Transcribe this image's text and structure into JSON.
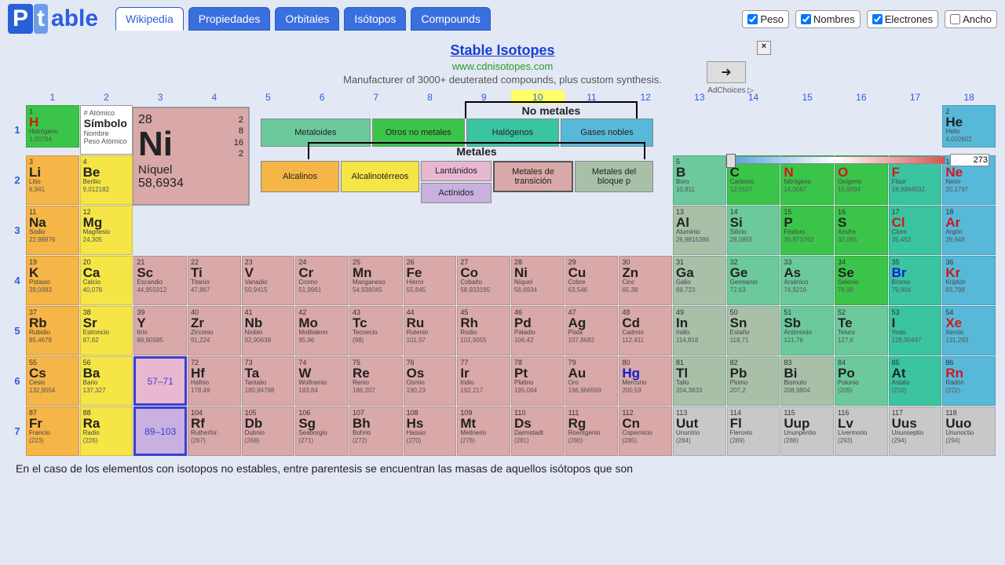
{
  "logo": {
    "p": "P",
    "t": "t",
    "rest": "able"
  },
  "tabs": [
    {
      "label": "Wikipedia",
      "active": true
    },
    {
      "label": "Propiedades",
      "active": false
    },
    {
      "label": "Orbitales",
      "active": false
    },
    {
      "label": "Isótopos",
      "active": false
    },
    {
      "label": "Compounds",
      "active": false
    }
  ],
  "checks": [
    {
      "label": "Peso",
      "checked": true
    },
    {
      "label": "Nombres",
      "checked": true
    },
    {
      "label": "Electrones",
      "checked": true
    },
    {
      "label": "Ancho",
      "checked": false
    }
  ],
  "ad": {
    "title": "Stable Isotopes",
    "url": "www.cdnisotopes.com",
    "desc": "Manufacturer of 3000+ deuterated compounds, plus custom synthesis.",
    "close": "×",
    "arrow": "➜",
    "adchoices": "AdChoices ▷"
  },
  "groups": [
    "1",
    "2",
    "3",
    "4",
    "5",
    "6",
    "7",
    "8",
    "9",
    "10",
    "11",
    "12",
    "13",
    "14",
    "15",
    "16",
    "17",
    "18"
  ],
  "group_highlight": 10,
  "periods": [
    "1",
    "2",
    "3",
    "4",
    "5",
    "6",
    "7"
  ],
  "key": {
    "l1": "# Atómico",
    "l2": "Símbolo",
    "l3": "Nombre",
    "l4": "Peso Atómico"
  },
  "detail": {
    "num": "28",
    "sym": "Ni",
    "name": "Níquel",
    "mass": "58,6934",
    "econf": [
      "2",
      "8",
      "16",
      "2"
    ]
  },
  "legend": {
    "nonmetals_title": "No metales",
    "metals_title": "Metales",
    "metalloids": "Metaloides",
    "other_nm": "Otros no metales",
    "halogens": "Halógenos",
    "noble": "Gases nobles",
    "alkali": "Alcalinos",
    "alkearth": "Alcalinotérreos",
    "lanth": "Lantánidos",
    "act": "Actínidos",
    "trans": "Metales de transición",
    "post": "Metales del bloque p"
  },
  "slider": {
    "value": "273"
  },
  "lanth_range": "57–71",
  "act_range": "89–103",
  "colors": {
    "alkali": "#f5b547",
    "alkearth": "#f5e547",
    "trans": "#d9a8a8",
    "post": "#a8c0a8",
    "metalloid": "#6cc99c",
    "nonmetal": "#3bc44a",
    "halogen": "#3bc4a0",
    "noble": "#58b8d8",
    "lanth": "#e8b8d0",
    "act": "#c8b0e0",
    "unknown": "#c8c8c8",
    "hydrogen": "#3bc44a"
  },
  "footer": "En el caso de los elementos con isotopos no estables, entre parentesis se encuentran las masas de aquellos isótopos que son",
  "elements": [
    {
      "p": 1,
      "g": 1,
      "n": "1",
      "s": "H",
      "nm": "Hidrógeno",
      "m": "1,00794",
      "c": "hydrogen",
      "sc": "#d01818"
    },
    {
      "p": 1,
      "g": 18,
      "n": "2",
      "s": "He",
      "nm": "Helio",
      "m": "4,002602",
      "c": "noble"
    },
    {
      "p": 2,
      "g": 1,
      "n": "3",
      "s": "Li",
      "nm": "Litio",
      "m": "6,941",
      "c": "alkali"
    },
    {
      "p": 2,
      "g": 2,
      "n": "4",
      "s": "Be",
      "nm": "Berilio",
      "m": "9,012182",
      "c": "alkearth"
    },
    {
      "p": 2,
      "g": 13,
      "n": "5",
      "s": "B",
      "nm": "Boro",
      "m": "10,811",
      "c": "metalloid"
    },
    {
      "p": 2,
      "g": 14,
      "n": "6",
      "s": "C",
      "nm": "Carbono",
      "m": "12,0107",
      "c": "nonmetal"
    },
    {
      "p": 2,
      "g": 15,
      "n": "7",
      "s": "N",
      "nm": "Nitrógeno",
      "m": "14,0067",
      "c": "nonmetal",
      "sc": "#d01818"
    },
    {
      "p": 2,
      "g": 16,
      "n": "8",
      "s": "O",
      "nm": "Oxígeno",
      "m": "15,9994",
      "c": "nonmetal",
      "sc": "#d01818"
    },
    {
      "p": 2,
      "g": 17,
      "n": "9",
      "s": "F",
      "nm": "Flúor",
      "m": "18,9984032",
      "c": "halogen",
      "sc": "#d01818"
    },
    {
      "p": 2,
      "g": 18,
      "n": "10",
      "s": "Ne",
      "nm": "Neón",
      "m": "20,1797",
      "c": "noble",
      "sc": "#d01818"
    },
    {
      "p": 3,
      "g": 1,
      "n": "11",
      "s": "Na",
      "nm": "Sodio",
      "m": "22,98976",
      "c": "alkali"
    },
    {
      "p": 3,
      "g": 2,
      "n": "12",
      "s": "Mg",
      "nm": "Magnesio",
      "m": "24,305",
      "c": "alkearth"
    },
    {
      "p": 3,
      "g": 13,
      "n": "13",
      "s": "Al",
      "nm": "Aluminio",
      "m": "26,9815386",
      "c": "post"
    },
    {
      "p": 3,
      "g": 14,
      "n": "14",
      "s": "Si",
      "nm": "Silicio",
      "m": "28,0855",
      "c": "metalloid"
    },
    {
      "p": 3,
      "g": 15,
      "n": "15",
      "s": "P",
      "nm": "Fósforo",
      "m": "30,973762",
      "c": "nonmetal"
    },
    {
      "p": 3,
      "g": 16,
      "n": "16",
      "s": "S",
      "nm": "Azufre",
      "m": "32,065",
      "c": "nonmetal"
    },
    {
      "p": 3,
      "g": 17,
      "n": "17",
      "s": "Cl",
      "nm": "Cloro",
      "m": "35,453",
      "c": "halogen",
      "sc": "#d01818"
    },
    {
      "p": 3,
      "g": 18,
      "n": "18",
      "s": "Ar",
      "nm": "Argón",
      "m": "39,948",
      "c": "noble",
      "sc": "#d01818"
    },
    {
      "p": 4,
      "g": 1,
      "n": "19",
      "s": "K",
      "nm": "Potasio",
      "m": "39,0983",
      "c": "alkali"
    },
    {
      "p": 4,
      "g": 2,
      "n": "20",
      "s": "Ca",
      "nm": "Calcio",
      "m": "40,078",
      "c": "alkearth"
    },
    {
      "p": 4,
      "g": 3,
      "n": "21",
      "s": "Sc",
      "nm": "Escandio",
      "m": "44,955912",
      "c": "trans"
    },
    {
      "p": 4,
      "g": 4,
      "n": "22",
      "s": "Ti",
      "nm": "Titanio",
      "m": "47,867",
      "c": "trans"
    },
    {
      "p": 4,
      "g": 5,
      "n": "23",
      "s": "V",
      "nm": "Vanadio",
      "m": "50,9415",
      "c": "trans"
    },
    {
      "p": 4,
      "g": 6,
      "n": "24",
      "s": "Cr",
      "nm": "Cromo",
      "m": "51,9961",
      "c": "trans"
    },
    {
      "p": 4,
      "g": 7,
      "n": "25",
      "s": "Mn",
      "nm": "Manganeso",
      "m": "54,938045",
      "c": "trans"
    },
    {
      "p": 4,
      "g": 8,
      "n": "26",
      "s": "Fe",
      "nm": "Hierro",
      "m": "55,845",
      "c": "trans"
    },
    {
      "p": 4,
      "g": 9,
      "n": "27",
      "s": "Co",
      "nm": "Cobalto",
      "m": "58,933195",
      "c": "trans"
    },
    {
      "p": 4,
      "g": 10,
      "n": "28",
      "s": "Ni",
      "nm": "Níquel",
      "m": "58,6934",
      "c": "trans"
    },
    {
      "p": 4,
      "g": 11,
      "n": "29",
      "s": "Cu",
      "nm": "Cobre",
      "m": "63,546",
      "c": "trans"
    },
    {
      "p": 4,
      "g": 12,
      "n": "30",
      "s": "Zn",
      "nm": "Cinc",
      "m": "65,38",
      "c": "trans"
    },
    {
      "p": 4,
      "g": 13,
      "n": "31",
      "s": "Ga",
      "nm": "Galio",
      "m": "69,723",
      "c": "post"
    },
    {
      "p": 4,
      "g": 14,
      "n": "32",
      "s": "Ge",
      "nm": "Germanio",
      "m": "72,63",
      "c": "metalloid"
    },
    {
      "p": 4,
      "g": 15,
      "n": "33",
      "s": "As",
      "nm": "Arsénico",
      "m": "74,9216",
      "c": "metalloid"
    },
    {
      "p": 4,
      "g": 16,
      "n": "34",
      "s": "Se",
      "nm": "Selenio",
      "m": "78,96",
      "c": "nonmetal"
    },
    {
      "p": 4,
      "g": 17,
      "n": "35",
      "s": "Br",
      "nm": "Bromo",
      "m": "79,904",
      "c": "halogen",
      "sc": "#1020d0"
    },
    {
      "p": 4,
      "g": 18,
      "n": "36",
      "s": "Kr",
      "nm": "Kriptón",
      "m": "83,798",
      "c": "noble",
      "sc": "#d01818"
    },
    {
      "p": 5,
      "g": 1,
      "n": "37",
      "s": "Rb",
      "nm": "Rubidio",
      "m": "85,4678",
      "c": "alkali"
    },
    {
      "p": 5,
      "g": 2,
      "n": "38",
      "s": "Sr",
      "nm": "Estroncio",
      "m": "87,62",
      "c": "alkearth"
    },
    {
      "p": 5,
      "g": 3,
      "n": "39",
      "s": "Y",
      "nm": "Itrio",
      "m": "88,90585",
      "c": "trans"
    },
    {
      "p": 5,
      "g": 4,
      "n": "40",
      "s": "Zr",
      "nm": "Zirconio",
      "m": "91,224",
      "c": "trans"
    },
    {
      "p": 5,
      "g": 5,
      "n": "41",
      "s": "Nb",
      "nm": "Niobio",
      "m": "92,90638",
      "c": "trans"
    },
    {
      "p": 5,
      "g": 6,
      "n": "42",
      "s": "Mo",
      "nm": "Molibdeno",
      "m": "95,96",
      "c": "trans"
    },
    {
      "p": 5,
      "g": 7,
      "n": "43",
      "s": "Tc",
      "nm": "Tecnecio",
      "m": "(98)",
      "c": "trans"
    },
    {
      "p": 5,
      "g": 8,
      "n": "44",
      "s": "Ru",
      "nm": "Rutenio",
      "m": "101,07",
      "c": "trans"
    },
    {
      "p": 5,
      "g": 9,
      "n": "45",
      "s": "Rh",
      "nm": "Rodio",
      "m": "102,9055",
      "c": "trans"
    },
    {
      "p": 5,
      "g": 10,
      "n": "46",
      "s": "Pd",
      "nm": "Paladio",
      "m": "106,42",
      "c": "trans"
    },
    {
      "p": 5,
      "g": 11,
      "n": "47",
      "s": "Ag",
      "nm": "Plata",
      "m": "107,8682",
      "c": "trans"
    },
    {
      "p": 5,
      "g": 12,
      "n": "48",
      "s": "Cd",
      "nm": "Cadmio",
      "m": "112,411",
      "c": "trans"
    },
    {
      "p": 5,
      "g": 13,
      "n": "49",
      "s": "In",
      "nm": "Indio",
      "m": "114,818",
      "c": "post"
    },
    {
      "p": 5,
      "g": 14,
      "n": "50",
      "s": "Sn",
      "nm": "Estaño",
      "m": "118,71",
      "c": "post"
    },
    {
      "p": 5,
      "g": 15,
      "n": "51",
      "s": "Sb",
      "nm": "Antimonio",
      "m": "121,76",
      "c": "metalloid"
    },
    {
      "p": 5,
      "g": 16,
      "n": "52",
      "s": "Te",
      "nm": "Teluro",
      "m": "127,6",
      "c": "metalloid"
    },
    {
      "p": 5,
      "g": 17,
      "n": "53",
      "s": "I",
      "nm": "Yodo",
      "m": "126,90447",
      "c": "halogen"
    },
    {
      "p": 5,
      "g": 18,
      "n": "54",
      "s": "Xe",
      "nm": "Xenón",
      "m": "131,293",
      "c": "noble",
      "sc": "#d01818"
    },
    {
      "p": 6,
      "g": 1,
      "n": "55",
      "s": "Cs",
      "nm": "Cesio",
      "m": "132,9054",
      "c": "alkali"
    },
    {
      "p": 6,
      "g": 2,
      "n": "56",
      "s": "Ba",
      "nm": "Bario",
      "m": "137,327",
      "c": "alkearth"
    },
    {
      "p": 6,
      "g": 4,
      "n": "72",
      "s": "Hf",
      "nm": "Hafnio",
      "m": "178,49",
      "c": "trans"
    },
    {
      "p": 6,
      "g": 5,
      "n": "73",
      "s": "Ta",
      "nm": "Tantalio",
      "m": "180,94788",
      "c": "trans"
    },
    {
      "p": 6,
      "g": 6,
      "n": "74",
      "s": "W",
      "nm": "Wolframio",
      "m": "183,84",
      "c": "trans"
    },
    {
      "p": 6,
      "g": 7,
      "n": "75",
      "s": "Re",
      "nm": "Renio",
      "m": "186,207",
      "c": "trans"
    },
    {
      "p": 6,
      "g": 8,
      "n": "76",
      "s": "Os",
      "nm": "Osmio",
      "m": "190,23",
      "c": "trans"
    },
    {
      "p": 6,
      "g": 9,
      "n": "77",
      "s": "Ir",
      "nm": "Iridio",
      "m": "192,217",
      "c": "trans"
    },
    {
      "p": 6,
      "g": 10,
      "n": "78",
      "s": "Pt",
      "nm": "Platino",
      "m": "195,084",
      "c": "trans"
    },
    {
      "p": 6,
      "g": 11,
      "n": "79",
      "s": "Au",
      "nm": "Oro",
      "m": "196,966569",
      "c": "trans"
    },
    {
      "p": 6,
      "g": 12,
      "n": "80",
      "s": "Hg",
      "nm": "Mercurio",
      "m": "200,59",
      "c": "trans",
      "sc": "#1020d0"
    },
    {
      "p": 6,
      "g": 13,
      "n": "81",
      "s": "Tl",
      "nm": "Talio",
      "m": "204,3833",
      "c": "post"
    },
    {
      "p": 6,
      "g": 14,
      "n": "82",
      "s": "Pb",
      "nm": "Plomo",
      "m": "207,2",
      "c": "post"
    },
    {
      "p": 6,
      "g": 15,
      "n": "83",
      "s": "Bi",
      "nm": "Bismuto",
      "m": "208,9804",
      "c": "post"
    },
    {
      "p": 6,
      "g": 16,
      "n": "84",
      "s": "Po",
      "nm": "Polonio",
      "m": "(209)",
      "c": "metalloid"
    },
    {
      "p": 6,
      "g": 17,
      "n": "85",
      "s": "At",
      "nm": "Astato",
      "m": "(210)",
      "c": "halogen"
    },
    {
      "p": 6,
      "g": 18,
      "n": "86",
      "s": "Rn",
      "nm": "Radón",
      "m": "(222)",
      "c": "noble",
      "sc": "#d01818"
    },
    {
      "p": 7,
      "g": 1,
      "n": "87",
      "s": "Fr",
      "nm": "Francio",
      "m": "(223)",
      "c": "alkali"
    },
    {
      "p": 7,
      "g": 2,
      "n": "88",
      "s": "Ra",
      "nm": "Radio",
      "m": "(226)",
      "c": "alkearth"
    },
    {
      "p": 7,
      "g": 4,
      "n": "104",
      "s": "Rf",
      "nm": "Rutherfor.",
      "m": "(267)",
      "c": "trans"
    },
    {
      "p": 7,
      "g": 5,
      "n": "105",
      "s": "Db",
      "nm": "Dubnio",
      "m": "(268)",
      "c": "trans"
    },
    {
      "p": 7,
      "g": 6,
      "n": "106",
      "s": "Sg",
      "nm": "Seaborgio",
      "m": "(271)",
      "c": "trans"
    },
    {
      "p": 7,
      "g": 7,
      "n": "107",
      "s": "Bh",
      "nm": "Bohrio",
      "m": "(272)",
      "c": "trans"
    },
    {
      "p": 7,
      "g": 8,
      "n": "108",
      "s": "Hs",
      "nm": "Hassio",
      "m": "(270)",
      "c": "trans"
    },
    {
      "p": 7,
      "g": 9,
      "n": "109",
      "s": "Mt",
      "nm": "Meitnerio",
      "m": "(276)",
      "c": "trans"
    },
    {
      "p": 7,
      "g": 10,
      "n": "110",
      "s": "Ds",
      "nm": "Darmstadt.",
      "m": "(281)",
      "c": "trans"
    },
    {
      "p": 7,
      "g": 11,
      "n": "111",
      "s": "Rg",
      "nm": "Roentgenio",
      "m": "(280)",
      "c": "trans"
    },
    {
      "p": 7,
      "g": 12,
      "n": "112",
      "s": "Cn",
      "nm": "Copernicio",
      "m": "(285)",
      "c": "trans"
    },
    {
      "p": 7,
      "g": 13,
      "n": "113",
      "s": "Uut",
      "nm": "Ununtrio",
      "m": "(284)",
      "c": "unknown"
    },
    {
      "p": 7,
      "g": 14,
      "n": "114",
      "s": "Fl",
      "nm": "Flerovio",
      "m": "(289)",
      "c": "unknown"
    },
    {
      "p": 7,
      "g": 15,
      "n": "115",
      "s": "Uup",
      "nm": "Ununpentio",
      "m": "(288)",
      "c": "unknown"
    },
    {
      "p": 7,
      "g": 16,
      "n": "116",
      "s": "Lv",
      "nm": "Livermorio",
      "m": "(293)",
      "c": "unknown"
    },
    {
      "p": 7,
      "g": 17,
      "n": "117",
      "s": "Uus",
      "nm": "Ununseptio",
      "m": "(294)",
      "c": "unknown"
    },
    {
      "p": 7,
      "g": 18,
      "n": "118",
      "s": "Uuo",
      "nm": "Ununoctio",
      "m": "(294)",
      "c": "unknown"
    }
  ]
}
